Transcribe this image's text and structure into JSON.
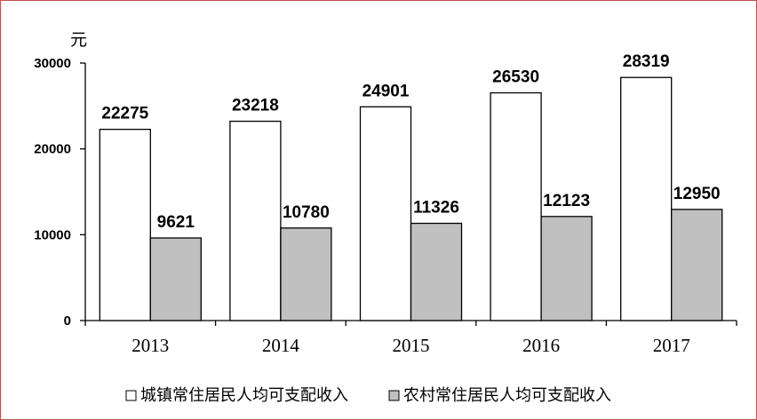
{
  "chart_data": {
    "type": "bar",
    "unit": "元",
    "categories": [
      "2013",
      "2014",
      "2015",
      "2016",
      "2017"
    ],
    "ylim": [
      0,
      30000
    ],
    "yticks": [
      0,
      10000,
      20000,
      30000
    ],
    "grid": false,
    "legend_position": "bottom",
    "series": [
      {
        "name": "城镇常住居民人均可支配收入",
        "values": [
          22275,
          23218,
          24901,
          26530,
          28319
        ],
        "color": "#ffffff"
      },
      {
        "name": "农村常住居民人均可支配收入",
        "values": [
          9621,
          10780,
          11326,
          12123,
          12950
        ],
        "color": "#c0c0c0"
      }
    ]
  }
}
